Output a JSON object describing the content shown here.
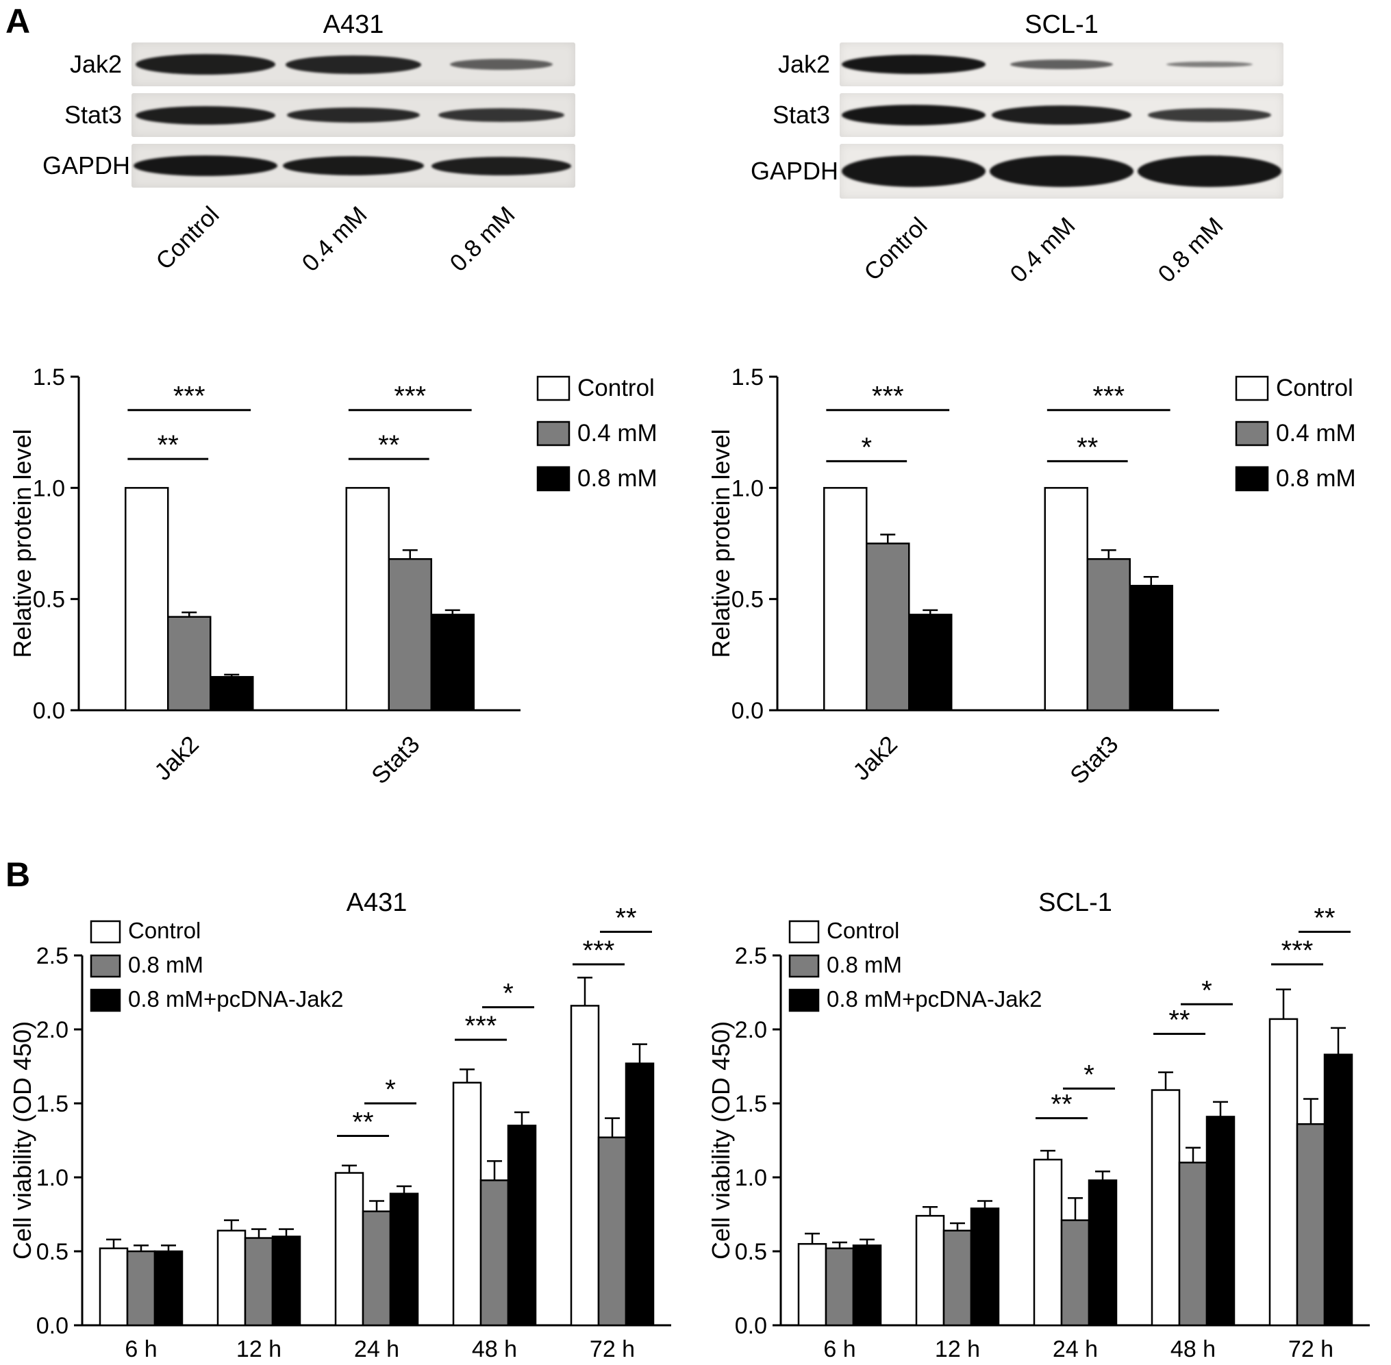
{
  "panel_labels": {
    "a": "A",
    "b": "B"
  },
  "colors": {
    "control_fill": "#ffffff",
    "mid_gray_fill": "#7d7d7d",
    "black_fill": "#000000",
    "axis_stroke": "#000000",
    "band_color": "#161616"
  },
  "blots": [
    {
      "title": "A431",
      "strip_bg": "#e6e4e1",
      "lane_labels": [
        "Control",
        "0.4 mM",
        "0.8 mM"
      ],
      "rows": [
        {
          "label": "Jak2",
          "strip_height": 64,
          "intensities": [
            0.95,
            0.9,
            0.5
          ],
          "thickness": [
            30,
            27,
            16
          ]
        },
        {
          "label": "Stat3",
          "strip_height": 64,
          "intensities": [
            0.95,
            0.87,
            0.78
          ],
          "thickness": [
            27,
            22,
            20
          ]
        },
        {
          "label": "GAPDH",
          "strip_height": 64,
          "intensities": [
            1.0,
            0.97,
            0.95
          ],
          "thickness": [
            30,
            28,
            27
          ]
        }
      ]
    },
    {
      "title": "SCL-1",
      "strip_bg": "#edebe8",
      "lane_labels": [
        "Control",
        "0.4 mM",
        "0.8 mM"
      ],
      "rows": [
        {
          "label": "Jak2",
          "strip_height": 64,
          "intensities": [
            1.0,
            0.5,
            0.3
          ],
          "thickness": [
            28,
            14,
            8
          ]
        },
        {
          "label": "Stat3",
          "strip_height": 64,
          "intensities": [
            1.0,
            0.95,
            0.75
          ],
          "thickness": [
            30,
            28,
            20
          ]
        },
        {
          "label": "GAPDH",
          "strip_height": 80,
          "intensities": [
            1.0,
            1.0,
            1.0
          ],
          "thickness": [
            46,
            46,
            46
          ]
        }
      ]
    }
  ],
  "chart_data": [
    {
      "id": "a431-relative-protein",
      "type": "bar",
      "panel": "A",
      "cell_line": "A431",
      "title": "",
      "ylabel": "Relative protein level",
      "ylim": [
        0,
        1.5
      ],
      "yticks": [
        "0.0",
        "0.5",
        "1.0",
        "1.5"
      ],
      "categories": [
        "Jak2",
        "Stat3"
      ],
      "legend_position": "right",
      "series": [
        {
          "name": "Control",
          "fill": "#ffffff",
          "values": [
            1.0,
            1.0
          ],
          "errors": [
            0,
            0
          ]
        },
        {
          "name": "0.4 mM",
          "fill": "#7d7d7d",
          "values": [
            0.42,
            0.68
          ],
          "errors": [
            0.02,
            0.04
          ]
        },
        {
          "name": "0.8 mM",
          "fill": "#000000",
          "values": [
            0.15,
            0.43
          ],
          "errors": [
            0.01,
            0.02
          ]
        }
      ],
      "significance": [
        {
          "category": 0,
          "from": 0,
          "to": 1,
          "y": 1.13,
          "label": "**"
        },
        {
          "category": 0,
          "from": 0,
          "to": 2,
          "y": 1.35,
          "label": "***"
        },
        {
          "category": 1,
          "from": 0,
          "to": 1,
          "y": 1.13,
          "label": "**"
        },
        {
          "category": 1,
          "from": 0,
          "to": 2,
          "y": 1.35,
          "label": "***"
        }
      ]
    },
    {
      "id": "scl1-relative-protein",
      "type": "bar",
      "panel": "A",
      "cell_line": "SCL-1",
      "title": "",
      "ylabel": "Relative protein level",
      "ylim": [
        0,
        1.5
      ],
      "yticks": [
        "0.0",
        "0.5",
        "1.0",
        "1.5"
      ],
      "categories": [
        "Jak2",
        "Stat3"
      ],
      "legend_position": "right",
      "series": [
        {
          "name": "Control",
          "fill": "#ffffff",
          "values": [
            1.0,
            1.0
          ],
          "errors": [
            0,
            0
          ]
        },
        {
          "name": "0.4 mM",
          "fill": "#7d7d7d",
          "values": [
            0.75,
            0.68
          ],
          "errors": [
            0.04,
            0.04
          ]
        },
        {
          "name": "0.8 mM",
          "fill": "#000000",
          "values": [
            0.43,
            0.56
          ],
          "errors": [
            0.02,
            0.04
          ]
        }
      ],
      "significance": [
        {
          "category": 0,
          "from": 0,
          "to": 1,
          "y": 1.12,
          "label": "*"
        },
        {
          "category": 0,
          "from": 0,
          "to": 2,
          "y": 1.35,
          "label": "***"
        },
        {
          "category": 1,
          "from": 0,
          "to": 1,
          "y": 1.12,
          "label": "**"
        },
        {
          "category": 1,
          "from": 0,
          "to": 2,
          "y": 1.35,
          "label": "***"
        }
      ]
    },
    {
      "id": "a431-cell-viability",
      "type": "bar",
      "panel": "B",
      "cell_line": "A431",
      "title": "A431",
      "ylabel": "Cell viability (OD 450)",
      "ylim": [
        0,
        2.5
      ],
      "yticks": [
        "0.0",
        "0.5",
        "1.0",
        "1.5",
        "2.0",
        "2.5"
      ],
      "categories": [
        "6 h",
        "12 h",
        "24 h",
        "48 h",
        "72 h"
      ],
      "legend_position": "top-left",
      "series": [
        {
          "name": "Control",
          "fill": "#ffffff",
          "values": [
            0.52,
            0.64,
            1.03,
            1.64,
            2.16
          ],
          "errors": [
            0.06,
            0.07,
            0.05,
            0.09,
            0.19
          ]
        },
        {
          "name": "0.8 mM",
          "fill": "#7d7d7d",
          "values": [
            0.5,
            0.59,
            0.77,
            0.98,
            1.27
          ],
          "errors": [
            0.04,
            0.06,
            0.07,
            0.13,
            0.13
          ]
        },
        {
          "name": "0.8 mM+pcDNA-Jak2",
          "fill": "#000000",
          "values": [
            0.5,
            0.6,
            0.89,
            1.35,
            1.77
          ],
          "errors": [
            0.04,
            0.05,
            0.05,
            0.09,
            0.13
          ]
        }
      ],
      "significance": [
        {
          "category": 2,
          "from": 0,
          "to": 1,
          "y": 1.28,
          "label": "**"
        },
        {
          "category": 2,
          "from": 1,
          "to": 2,
          "y": 1.5,
          "label": "*"
        },
        {
          "category": 3,
          "from": 0,
          "to": 1,
          "y": 1.93,
          "label": "***"
        },
        {
          "category": 3,
          "from": 1,
          "to": 2,
          "y": 2.15,
          "label": "*"
        },
        {
          "category": 4,
          "from": 0,
          "to": 1,
          "y": 2.44,
          "label": "***"
        },
        {
          "category": 4,
          "from": 1,
          "to": 2,
          "y": 2.66,
          "label": "**"
        }
      ]
    },
    {
      "id": "scl1-cell-viability",
      "type": "bar",
      "panel": "B",
      "cell_line": "SCL-1",
      "title": "SCL-1",
      "ylabel": "Cell viability (OD 450)",
      "ylim": [
        0,
        2.5
      ],
      "yticks": [
        "0.0",
        "0.5",
        "1.0",
        "1.5",
        "2.0",
        "2.5"
      ],
      "categories": [
        "6 h",
        "12 h",
        "24 h",
        "48 h",
        "72 h"
      ],
      "legend_position": "top-left",
      "series": [
        {
          "name": "Control",
          "fill": "#ffffff",
          "values": [
            0.55,
            0.74,
            1.12,
            1.59,
            2.07
          ],
          "errors": [
            0.07,
            0.06,
            0.06,
            0.12,
            0.2
          ]
        },
        {
          "name": "0.8 mM",
          "fill": "#7d7d7d",
          "values": [
            0.52,
            0.64,
            0.71,
            1.1,
            1.36
          ],
          "errors": [
            0.04,
            0.05,
            0.15,
            0.1,
            0.17
          ]
        },
        {
          "name": "0.8 mM+pcDNA-Jak2",
          "fill": "#000000",
          "values": [
            0.54,
            0.79,
            0.98,
            1.41,
            1.83
          ],
          "errors": [
            0.04,
            0.05,
            0.06,
            0.1,
            0.18
          ]
        }
      ],
      "significance": [
        {
          "category": 2,
          "from": 0,
          "to": 1,
          "y": 1.4,
          "label": "**"
        },
        {
          "category": 2,
          "from": 1,
          "to": 2,
          "y": 1.6,
          "label": "*"
        },
        {
          "category": 3,
          "from": 0,
          "to": 1,
          "y": 1.97,
          "label": "**"
        },
        {
          "category": 3,
          "from": 1,
          "to": 2,
          "y": 2.17,
          "label": "*"
        },
        {
          "category": 4,
          "from": 0,
          "to": 1,
          "y": 2.44,
          "label": "***"
        },
        {
          "category": 4,
          "from": 1,
          "to": 2,
          "y": 2.66,
          "label": "**"
        }
      ]
    }
  ]
}
